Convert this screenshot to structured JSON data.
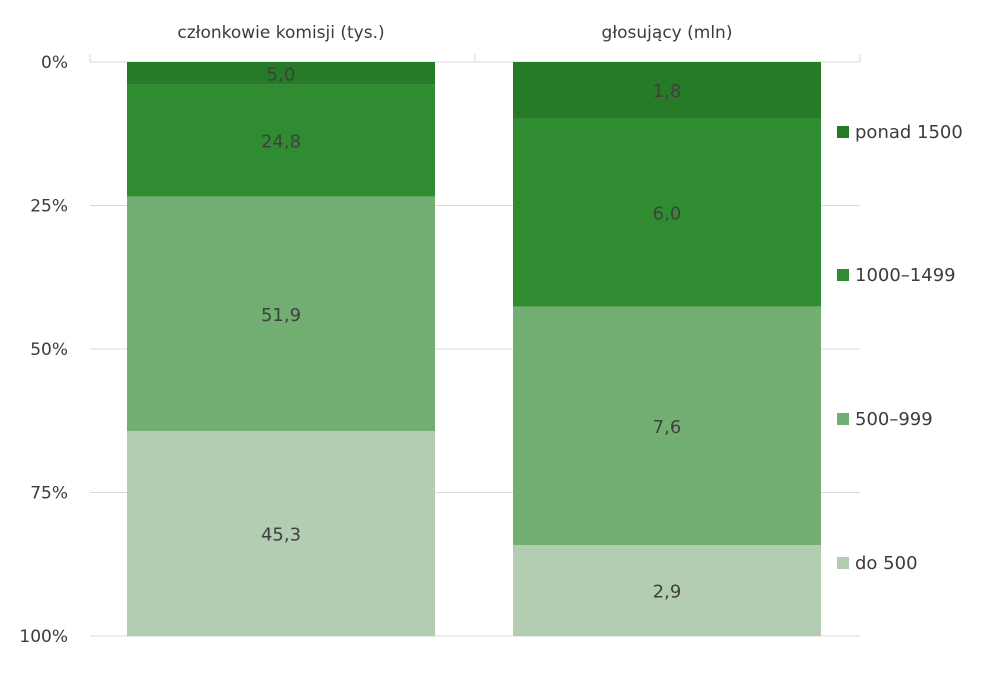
{
  "chart_data": {
    "type": "bar",
    "stacked": true,
    "normalized": true,
    "orientation": "vertical",
    "y_axis": {
      "reversed": true,
      "ticks": [
        "0%",
        "25%",
        "50%",
        "75%",
        "100%"
      ],
      "tick_values": [
        0,
        25,
        50,
        75,
        100
      ],
      "ylim": [
        0,
        100
      ]
    },
    "grid": true,
    "legend_position": "right",
    "categories": [
      "członkowie komisji (tys.)",
      "głosujący (mln)"
    ],
    "series": [
      {
        "name": "ponad 1500",
        "color": "#277a27",
        "values": [
          5.0,
          1.8
        ],
        "labels": [
          "5,0",
          "1,8"
        ]
      },
      {
        "name": "1000–1499",
        "color": "#2f8c30",
        "values": [
          24.8,
          6.0
        ],
        "labels": [
          "24,8",
          "6,0"
        ]
      },
      {
        "name": "500–999",
        "color": "#72ad72",
        "values": [
          51.9,
          7.6
        ],
        "labels": [
          "51,9",
          "7,6"
        ]
      },
      {
        "name": "do 500",
        "color": "#b2cdb1",
        "values": [
          45.3,
          2.9
        ],
        "labels": [
          "45,3",
          "2,9"
        ]
      }
    ],
    "legend_order": [
      "ponad 1500",
      "1000–1499",
      "500–999",
      "do 500"
    ]
  }
}
